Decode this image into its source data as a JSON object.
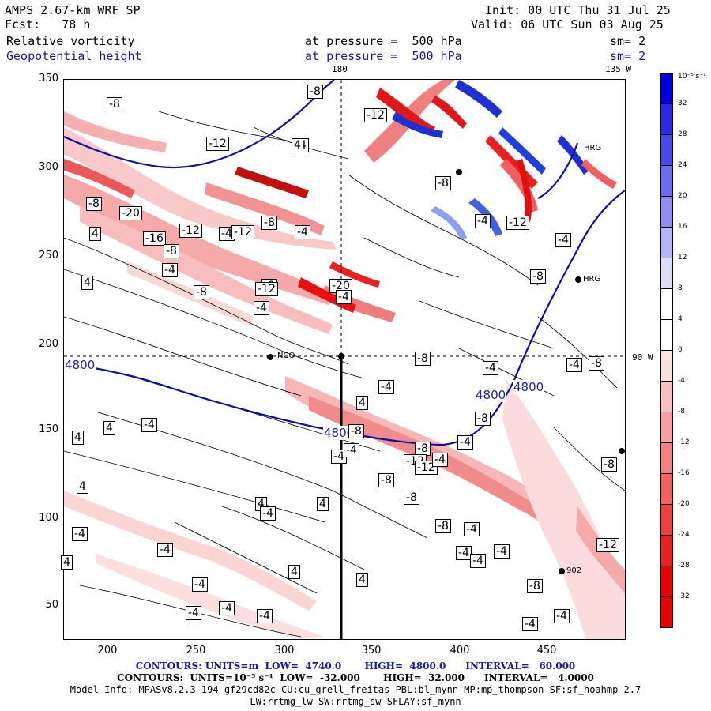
{
  "header": {
    "model": "AMPS 2.67-km WRF SP",
    "fcst": "Fcst:   78 h",
    "init": "Init: 00 UTC Thu 31 Jul 25",
    "valid": "Valid: 06 UTC Sun 03 Aug 25",
    "field1": "Relative vorticity",
    "field2": "Geopotential height",
    "pressure1": "at pressure =  500 hPa",
    "pressure2": "at pressure =  500 hPa",
    "sm1": "sm= 2",
    "sm2": "sm= 2"
  },
  "map_labels": {
    "lon180": "180",
    "lon135": "135 W",
    "lon90": "90 W",
    "site_nco": "NCO",
    "site_hrg_top": "HRG",
    "site_hrg_mid": "HRG",
    "site_bottom": "902"
  },
  "axes": {
    "y_ticks": [
      "350",
      "300",
      "250",
      "200",
      "150",
      "100",
      "50"
    ],
    "x_ticks": [
      "200",
      "250",
      "300",
      "350",
      "400",
      "450"
    ]
  },
  "colorbar": {
    "unit": "10⁻⁵ s⁻¹",
    "labels": [
      "32",
      "28",
      "24",
      "20",
      "16",
      "12",
      "8",
      "4",
      "0",
      "-4",
      "-8",
      "-12",
      "-16",
      "-20",
      "-24",
      "-28",
      "-32"
    ],
    "colors": [
      "#0000e0",
      "#2a2ae8",
      "#4848ee",
      "#6a6af2",
      "#8e8ef5",
      "#b4b4f8",
      "#dcdcfb",
      "#ffffff",
      "#ffffff",
      "#fde0e0",
      "#fbc0c0",
      "#f8a0a0",
      "#f58080",
      "#f26060",
      "#ef4040",
      "#eb2020",
      "#e80000"
    ]
  },
  "contour_labels": {
    "height": [
      "4800",
      "4800",
      "4800",
      "4800"
    ],
    "vort": [
      "-8",
      "-8",
      "-12",
      "-4",
      "-12",
      "-20",
      "-16",
      "-12",
      "-4",
      "4",
      "-8",
      "-8",
      "-4",
      "-12",
      "-8",
      "-4",
      "-8",
      "-20",
      "-4",
      "-12",
      "-8",
      "-4",
      "4",
      "-8",
      "-4",
      "-12",
      "-8",
      "-4",
      "4",
      "4",
      "4",
      "-4",
      "4",
      "4",
      "-4",
      "4",
      "4",
      "4",
      "-4",
      "-4",
      "-4",
      "-4",
      "-4",
      "-4",
      "4",
      "4",
      "-4",
      "-8",
      "-12",
      "-8",
      "-8",
      "-12",
      "-8",
      "-4",
      "-8",
      "-4",
      "-4",
      "-4",
      "-4",
      "-8",
      "-4",
      "-4",
      "-8",
      "-4",
      "-4",
      "-4",
      "-8",
      "-12",
      "-8",
      "-8",
      "-4",
      "-4"
    ]
  },
  "footer": {
    "line1": "CONTOURS: UNITS=m  LOW=  4740.0       HIGH=  4800.0      INTERVAL=   60.000",
    "line2": "CONTOURS:  UNITS=10⁻⁵ s⁻¹  LOW=  -32.000       HIGH=  32.000      INTERVAL=   4.0000",
    "line3": "Model Info: MPASv8.2.3-194-gf29cd82c CU:cu_grell_freitas PBL:bl_mynn MP:mp_thompson SF:sf_noahmp 2.7",
    "line4": "LW:rrtmg_lw SW:rrtmg_sw SFLAY:sf_mynn"
  }
}
